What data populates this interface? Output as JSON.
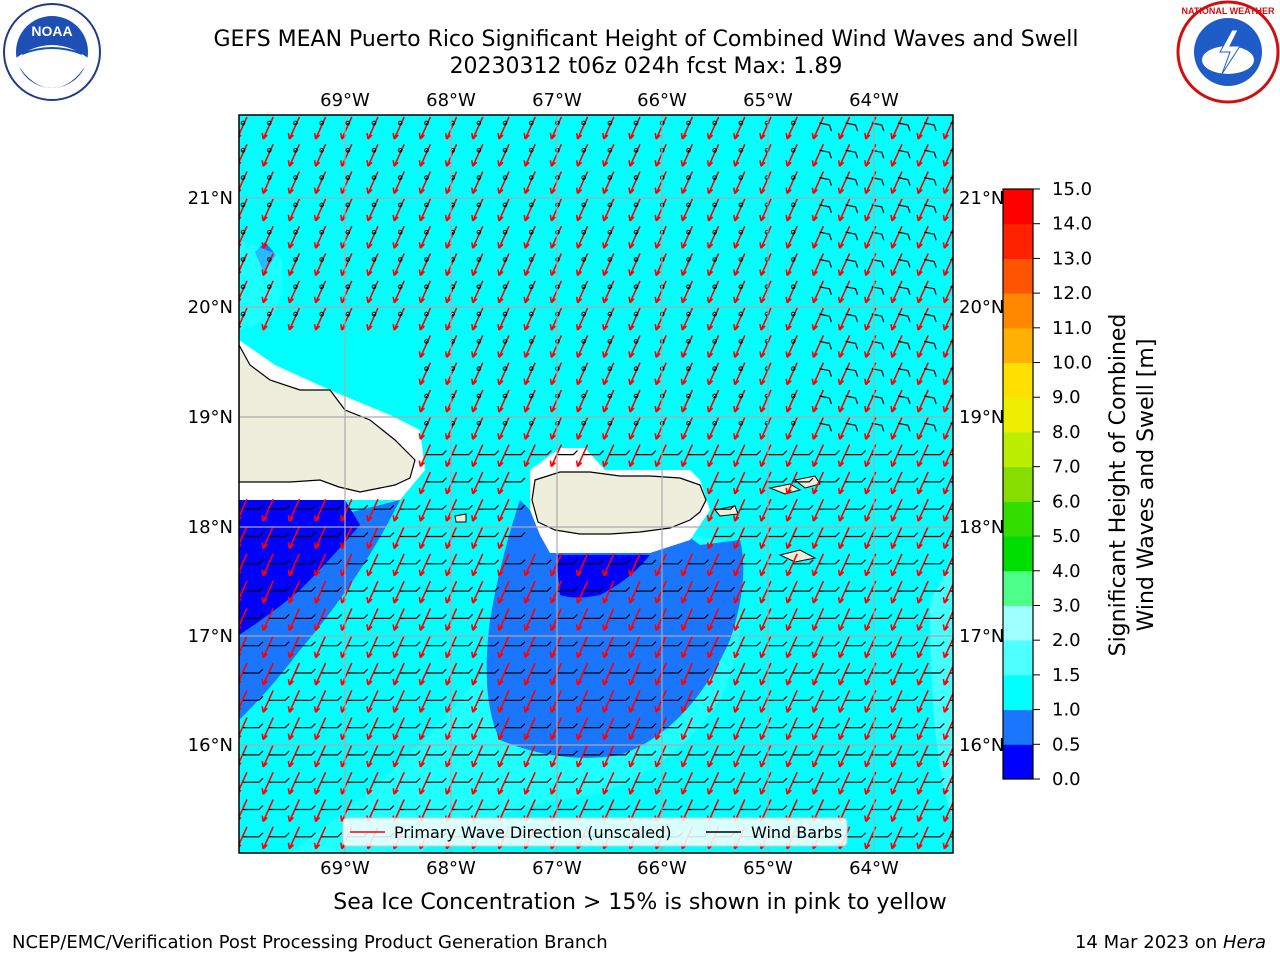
{
  "header": {
    "title_line1": "GEFS MEAN Puerto Rico Significant Height of Combined Wind Waves and Swell",
    "title_line2": "20230312 t06z 024h fcst   Max: 1.89"
  },
  "logos": {
    "left": "noaa-logo",
    "right": "nws-logo"
  },
  "map": {
    "lon_labels": [
      "69°W",
      "68°W",
      "67°W",
      "66°W",
      "65°W",
      "64°W"
    ],
    "lat_labels": [
      "21°N",
      "20°N",
      "19°N",
      "18°N",
      "17°N",
      "16°N"
    ],
    "colors": {
      "land": "#eeeedc",
      "ocean_1_1_5": "#00ffff",
      "ocean_0_5_1": "#1a75ff",
      "ocean_0_0_5": "#0000ff",
      "wave_arrow": "#ff0000",
      "wind_barb": "#000000"
    }
  },
  "legend": {
    "primary_wave": "Primary Wave Direction (unscaled)",
    "wind_barbs": "Wind Barbs"
  },
  "colorbar": {
    "label_line1": "Significant Height of Combined",
    "label_line2": "Wind Waves and Swell [m]",
    "ticks": [
      "15.0",
      "14.0",
      "13.0",
      "12.0",
      "11.0",
      "10.0",
      "9.0",
      "8.0",
      "7.0",
      "6.0",
      "5.0",
      "4.0",
      "3.0",
      "2.0",
      "1.5",
      "1.0",
      "0.5",
      "0.0"
    ],
    "colors": [
      "#0000ff",
      "#1a75ff",
      "#00ffff",
      "#4dffff",
      "#a0ffff",
      "#4dff88",
      "#00dd00",
      "#33dd00",
      "#88dd00",
      "#bbee00",
      "#eeee00",
      "#ffe000",
      "#ffb000",
      "#ff8800",
      "#ff5500",
      "#ff2200",
      "#ff0000"
    ]
  },
  "footer": {
    "note": "Sea Ice Concentration > 15% is shown in pink to yellow",
    "left": "NCEP/EMC/Verification Post Processing Product Generation Branch",
    "right_date": "14 Mar 2023 on ",
    "right_host": "Hera"
  }
}
